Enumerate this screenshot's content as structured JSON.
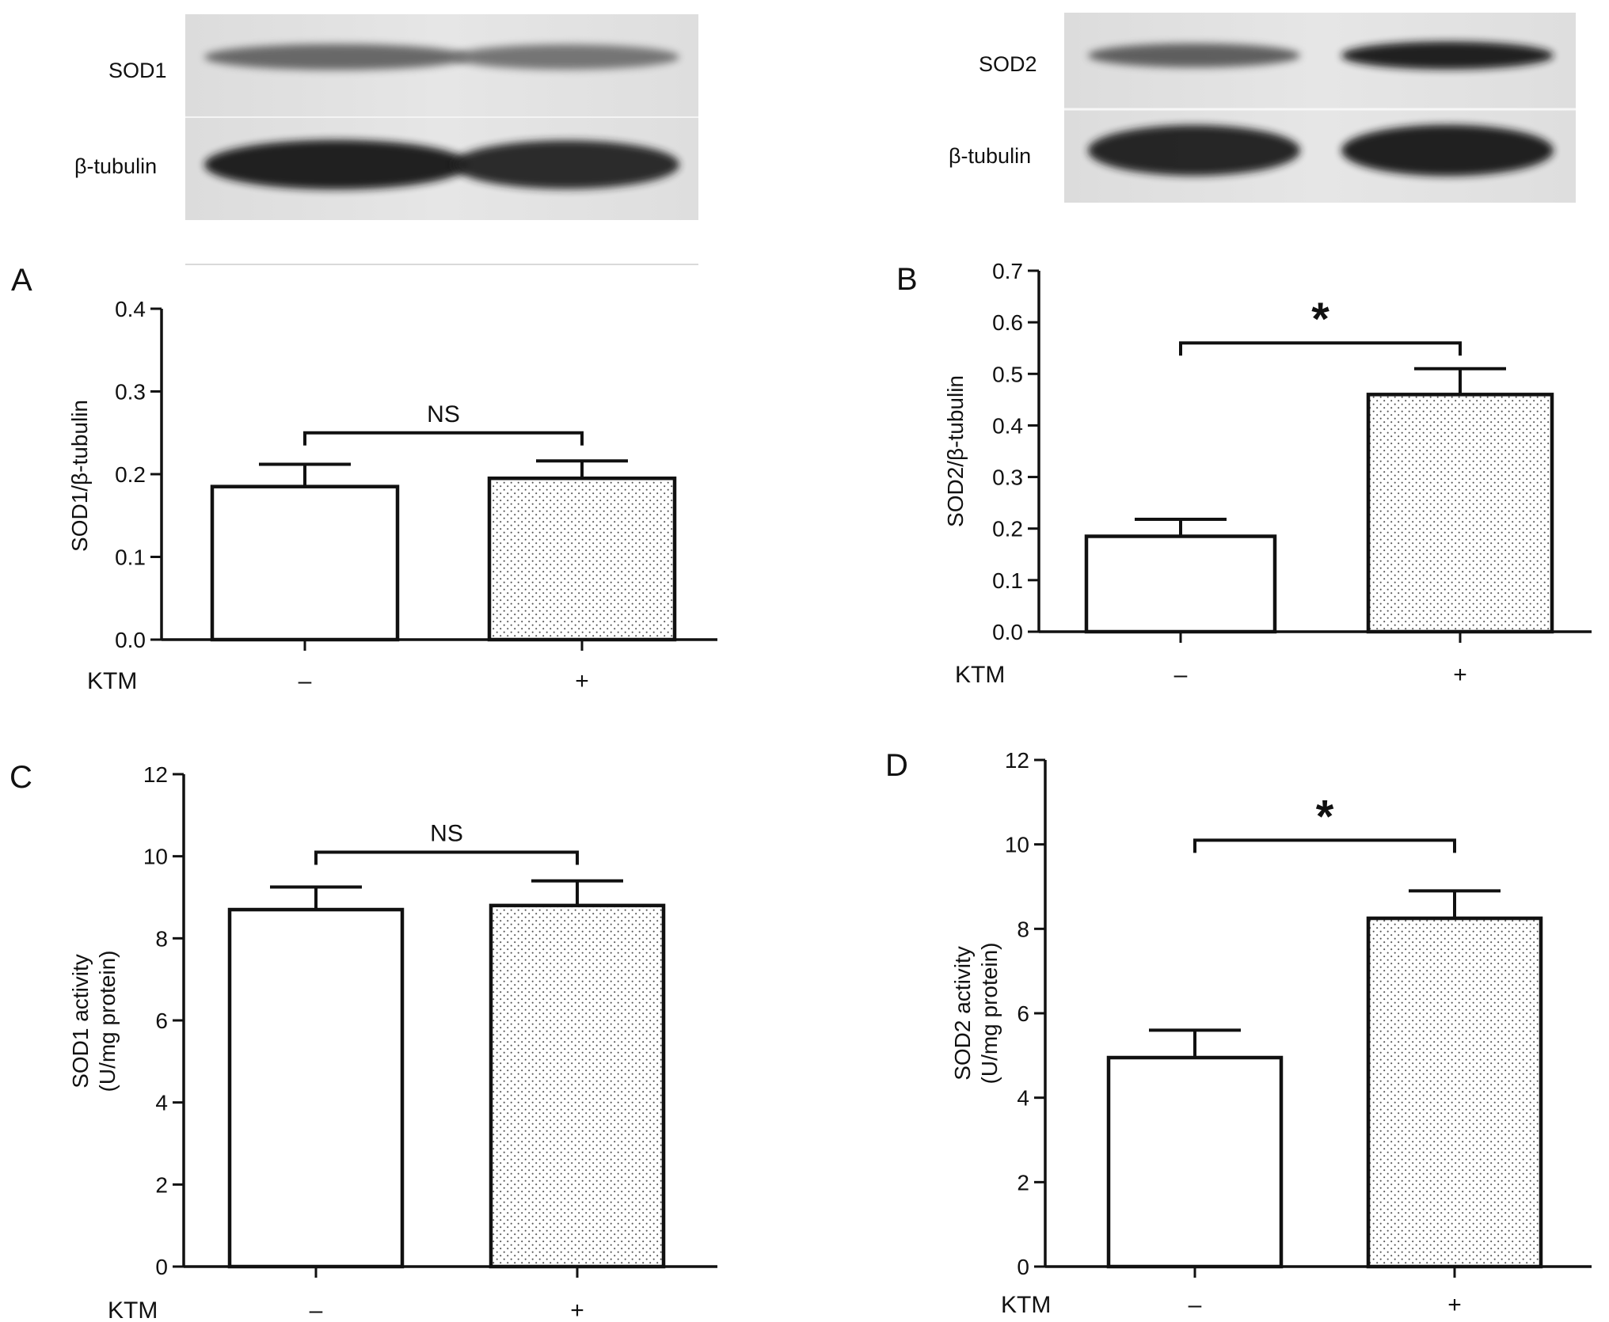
{
  "blots": [
    {
      "name": "blot-sod1",
      "lanes": 2,
      "rows": [
        {
          "label": "SOD1",
          "band_intensity": [
            0.55,
            0.48
          ]
        },
        {
          "label": "β-tubulin",
          "band_intensity": [
            0.95,
            0.9
          ]
        }
      ]
    },
    {
      "name": "blot-sod2",
      "lanes": 2,
      "rows": [
        {
          "label": "SOD2",
          "band_intensity": [
            0.6,
            0.95
          ]
        },
        {
          "label": "β-tubulin",
          "band_intensity": [
            0.92,
            0.95
          ]
        }
      ]
    }
  ],
  "chart_data": [
    {
      "type": "bar",
      "panel_label": "A",
      "ylabel_lines": [
        "SOD1/β-tubulin"
      ],
      "yticks": [
        "0.0",
        "0.1",
        "0.2",
        "0.3",
        "0.4"
      ],
      "ylim": [
        0,
        0.4
      ],
      "group_label": "KTM",
      "categories": [
        "–",
        "+"
      ],
      "values": [
        0.185,
        0.195
      ],
      "errors": [
        0.027,
        0.021
      ],
      "fills": [
        "white",
        "dotted"
      ],
      "significance": {
        "text": "NS",
        "bracket_y": 0.25,
        "size": "normal"
      }
    },
    {
      "type": "bar",
      "panel_label": "B",
      "ylabel_lines": [
        "SOD2/β-tubulin"
      ],
      "yticks": [
        "0.0",
        "0.1",
        "0.2",
        "0.3",
        "0.4",
        "0.5",
        "0.6",
        "0.7"
      ],
      "ylim": [
        0,
        0.7
      ],
      "group_label": "KTM",
      "categories": [
        "–",
        "+"
      ],
      "values": [
        0.185,
        0.46
      ],
      "errors": [
        0.033,
        0.05
      ],
      "fills": [
        "white",
        "dotted"
      ],
      "significance": {
        "text": "*",
        "bracket_y": 0.56,
        "size": "large"
      }
    },
    {
      "type": "bar",
      "panel_label": "C",
      "ylabel_lines": [
        "SOD1 activity",
        "(U/mg protein)"
      ],
      "yticks": [
        "0",
        "2",
        "4",
        "6",
        "8",
        "10",
        "12"
      ],
      "ylim": [
        0,
        12
      ],
      "group_label": "KTM",
      "categories": [
        "–",
        "+"
      ],
      "values": [
        8.7,
        8.8
      ],
      "errors": [
        0.55,
        0.6
      ],
      "fills": [
        "white",
        "dotted"
      ],
      "significance": {
        "text": "NS",
        "bracket_y": 10.1,
        "size": "normal"
      }
    },
    {
      "type": "bar",
      "panel_label": "D",
      "ylabel_lines": [
        "SOD2 activity",
        "(U/mg protein)"
      ],
      "yticks": [
        "0",
        "2",
        "4",
        "6",
        "8",
        "10",
        "12"
      ],
      "ylim": [
        0,
        12
      ],
      "group_label": "KTM",
      "categories": [
        "–",
        "+"
      ],
      "values": [
        4.95,
        8.25
      ],
      "errors": [
        0.65,
        0.65
      ],
      "fills": [
        "white",
        "dotted"
      ],
      "significance": {
        "text": "*",
        "bracket_y": 10.1,
        "size": "large"
      }
    }
  ]
}
